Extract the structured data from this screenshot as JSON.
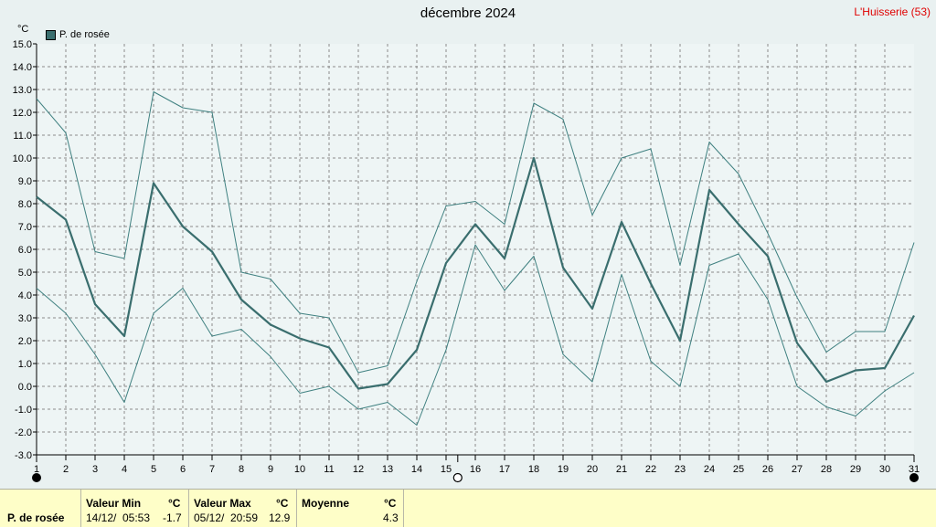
{
  "header": {
    "title": "décembre 2024",
    "station": "L'Huisserie (53)",
    "unit": "°C"
  },
  "legend": {
    "label": "P. de rosée"
  },
  "colors": {
    "series": "#3a6e6e",
    "band": "#3f8080",
    "plot_bg": "#eef5f5",
    "grid": "#8c8c8c",
    "station": "#e00000"
  },
  "chart_data": {
    "type": "line",
    "title": "décembre 2024",
    "ylabel": "°C",
    "ylim": [
      -3.0,
      15.0
    ],
    "xlim": [
      1,
      31
    ],
    "y_ticks": [
      "-3.0",
      "-2.0",
      "-1.0",
      "0.0",
      "1.0",
      "2.0",
      "3.0",
      "4.0",
      "5.0",
      "6.0",
      "7.0",
      "8.0",
      "9.0",
      "10.0",
      "11.0",
      "12.0",
      "13.0",
      "14.0",
      "15.0"
    ],
    "x": [
      "1",
      "2",
      "3",
      "4",
      "5",
      "6",
      "7",
      "8",
      "9",
      "10",
      "11",
      "12",
      "13",
      "14",
      "15",
      "16",
      "17",
      "18",
      "19",
      "20",
      "21",
      "22",
      "23",
      "24",
      "25",
      "26",
      "27",
      "28",
      "29",
      "30",
      "31"
    ],
    "moon_phases": [
      {
        "day": 1,
        "phase": "new"
      },
      {
        "day": 15.4,
        "phase": "full"
      },
      {
        "day": 31,
        "phase": "new"
      }
    ],
    "series": [
      {
        "name": "P. de rosée",
        "role": "mean",
        "values": [
          8.3,
          7.3,
          3.6,
          2.2,
          8.9,
          7.0,
          5.9,
          3.8,
          2.7,
          2.1,
          1.7,
          -0.1,
          0.1,
          1.6,
          5.4,
          7.1,
          5.6,
          10.0,
          5.2,
          3.4,
          7.2,
          4.5,
          2.0,
          8.6,
          7.1,
          5.7,
          1.9,
          0.2,
          0.7,
          0.8,
          3.1
        ]
      },
      {
        "role": "max",
        "values": [
          12.6,
          11.1,
          5.9,
          5.6,
          12.9,
          12.2,
          12.0,
          5.0,
          4.7,
          3.2,
          3.0,
          0.6,
          0.9,
          4.6,
          7.9,
          8.1,
          7.1,
          12.4,
          11.7,
          7.5,
          10.0,
          10.4,
          5.3,
          10.7,
          9.3,
          6.7,
          3.9,
          1.5,
          2.4,
          2.4,
          6.3
        ]
      },
      {
        "role": "min",
        "values": [
          4.3,
          3.2,
          1.4,
          -0.7,
          3.2,
          4.3,
          2.2,
          2.5,
          1.3,
          -0.3,
          0.0,
          -1.0,
          -0.7,
          -1.7,
          1.6,
          6.2,
          4.2,
          5.7,
          1.4,
          0.2,
          4.9,
          1.1,
          0.0,
          5.3,
          5.8,
          3.8,
          0.0,
          -0.9,
          -1.3,
          -0.2,
          0.6
        ]
      }
    ]
  },
  "stats": {
    "row_label": "P. de rosée",
    "min": {
      "header": "Valeur Min",
      "unit": "°C",
      "date": "14/12/",
      "time": "05:53",
      "value": "-1.7"
    },
    "max": {
      "header": "Valeur Max",
      "unit": "°C",
      "date": "05/12/",
      "time": "20:59",
      "value": "12.9"
    },
    "mean": {
      "header": "Moyenne",
      "unit": "°C",
      "value": "4.3"
    }
  }
}
